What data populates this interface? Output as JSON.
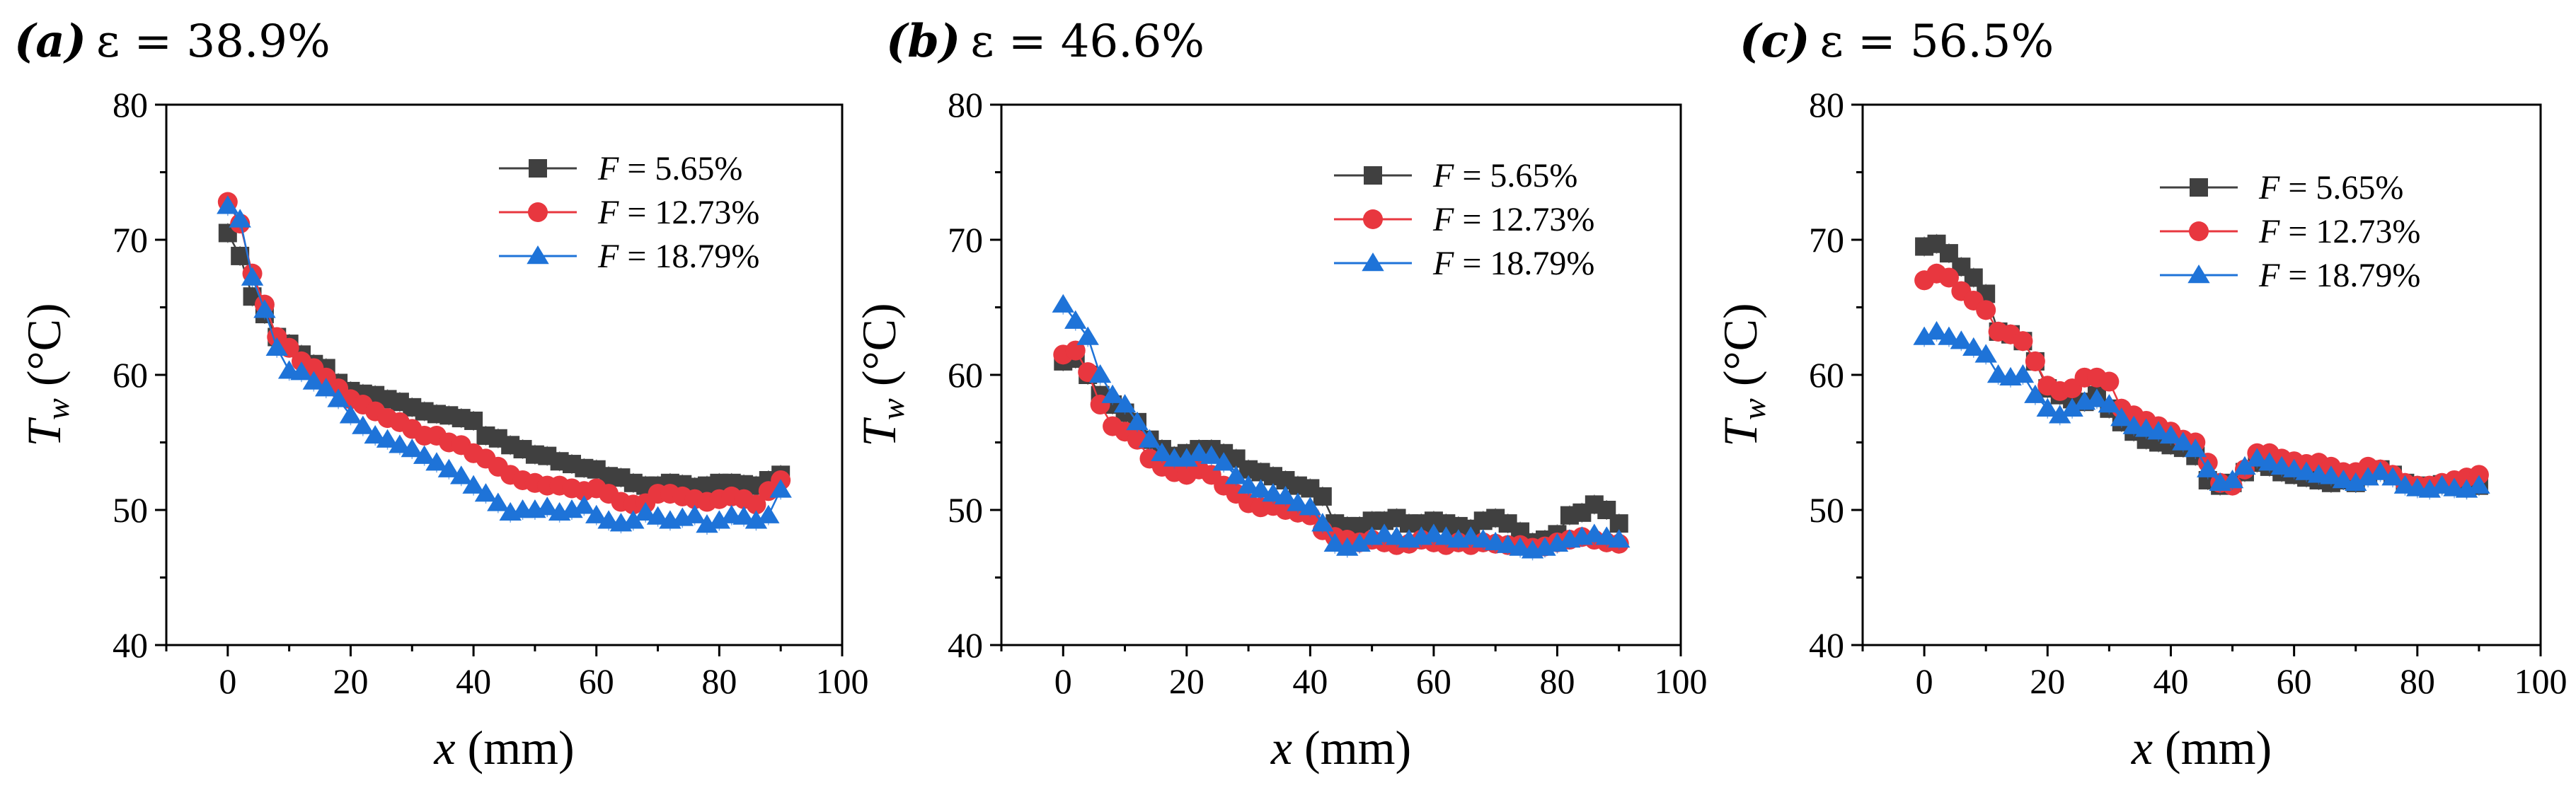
{
  "colors": {
    "s565": "#404040",
    "s1273": "#E8373F",
    "s1879": "#1E73D8"
  },
  "chart_data": [
    {
      "type": "scatter",
      "panel": "(a)",
      "title": "ε = 38.9%",
      "xlabel": "x (mm)",
      "ylabel": "Tw (°C)",
      "xlim": [
        -10,
        100
      ],
      "ylim": [
        40,
        80
      ],
      "xticks": [
        0,
        20,
        40,
        60,
        80,
        100
      ],
      "yticks": [
        40,
        50,
        60,
        70,
        80
      ],
      "legend_position": "top-right",
      "series": [
        {
          "name": "F = 5.65%",
          "marker": "square",
          "color": "#404040",
          "x": [
            0,
            2,
            4,
            6,
            8,
            10,
            12,
            14,
            16,
            18,
            20,
            22,
            24,
            26,
            28,
            30,
            32,
            34,
            36,
            38,
            40,
            42,
            44,
            46,
            48,
            50,
            52,
            54,
            56,
            58,
            60,
            62,
            64,
            66,
            68,
            70,
            72,
            74,
            76,
            78,
            80,
            82,
            84,
            86,
            88,
            90
          ],
          "y": [
            70.5,
            68.8,
            65.8,
            64.5,
            62.8,
            62.3,
            61.5,
            60.8,
            60.5,
            59.4,
            58.8,
            58.6,
            58.5,
            58.2,
            58.0,
            57.6,
            57.3,
            57.1,
            57.0,
            56.8,
            56.6,
            55.5,
            55.3,
            54.8,
            54.5,
            54.1,
            54.0,
            53.6,
            53.4,
            53.1,
            53.0,
            52.5,
            52.4,
            52.0,
            51.8,
            51.8,
            52.0,
            51.9,
            51.7,
            51.8,
            52.0,
            52.0,
            51.9,
            51.8,
            52.2,
            52.6
          ]
        },
        {
          "name": "F = 12.73%",
          "marker": "circle",
          "color": "#E8373F",
          "x": [
            0,
            2,
            4,
            6,
            8,
            10,
            12,
            14,
            16,
            18,
            20,
            22,
            24,
            26,
            28,
            30,
            32,
            34,
            36,
            38,
            40,
            42,
            44,
            46,
            48,
            50,
            52,
            54,
            56,
            58,
            60,
            62,
            64,
            66,
            68,
            70,
            72,
            74,
            76,
            78,
            80,
            82,
            84,
            86,
            88,
            90
          ],
          "y": [
            72.8,
            71.2,
            67.5,
            65.2,
            62.8,
            62.0,
            61.0,
            60.5,
            59.8,
            59.0,
            58.2,
            57.8,
            57.3,
            56.8,
            56.5,
            56.0,
            55.5,
            55.5,
            55.0,
            54.8,
            54.2,
            53.8,
            53.2,
            52.6,
            52.2,
            52.0,
            51.8,
            51.8,
            51.6,
            51.4,
            51.6,
            51.2,
            50.6,
            50.4,
            50.5,
            51.2,
            51.2,
            51.0,
            50.8,
            50.6,
            50.8,
            51.0,
            50.8,
            50.4,
            51.4,
            52.2
          ]
        },
        {
          "name": "F = 18.79%",
          "marker": "triangle",
          "color": "#1E73D8",
          "x": [
            0,
            2,
            4,
            6,
            8,
            10,
            12,
            14,
            16,
            18,
            20,
            22,
            24,
            26,
            28,
            30,
            32,
            34,
            36,
            38,
            40,
            42,
            44,
            46,
            48,
            50,
            52,
            54,
            56,
            58,
            60,
            62,
            64,
            66,
            68,
            70,
            72,
            74,
            76,
            78,
            80,
            82,
            84,
            86,
            88,
            90
          ],
          "y": [
            72.5,
            71.5,
            67.2,
            64.8,
            62.0,
            60.3,
            60.2,
            59.5,
            59.0,
            58.2,
            57.0,
            56.2,
            55.5,
            55.2,
            54.8,
            54.5,
            54.0,
            53.5,
            53.0,
            52.5,
            51.8,
            51.2,
            50.5,
            49.8,
            50.0,
            50.0,
            50.2,
            49.8,
            50.0,
            50.3,
            49.6,
            49.2,
            49.0,
            49.2,
            49.8,
            49.5,
            49.2,
            49.4,
            49.6,
            48.9,
            49.2,
            49.6,
            49.5,
            49.2,
            49.6,
            51.5
          ]
        }
      ]
    },
    {
      "type": "scatter",
      "panel": "(b)",
      "title": "ε = 46.6%",
      "xlabel": "x (mm)",
      "ylabel": "Tw (°C)",
      "xlim": [
        -10,
        100
      ],
      "ylim": [
        40,
        80
      ],
      "xticks": [
        0,
        20,
        40,
        60,
        80,
        100
      ],
      "yticks": [
        40,
        50,
        60,
        70,
        80
      ],
      "legend_position": "top-right",
      "series": [
        {
          "name": "F = 5.65%",
          "marker": "square",
          "color": "#404040",
          "x": [
            0,
            2,
            4,
            6,
            8,
            10,
            12,
            14,
            16,
            18,
            20,
            22,
            24,
            26,
            28,
            30,
            32,
            34,
            36,
            38,
            40,
            42,
            44,
            46,
            48,
            50,
            52,
            54,
            56,
            58,
            60,
            62,
            64,
            66,
            68,
            70,
            72,
            74,
            76,
            78,
            80,
            82,
            84,
            86,
            88,
            90
          ],
          "y": [
            61.0,
            61.2,
            60.0,
            58.5,
            57.8,
            57.2,
            56.5,
            55.2,
            54.5,
            54.0,
            54.2,
            54.5,
            54.5,
            54.2,
            53.8,
            53.0,
            52.8,
            52.5,
            52.2,
            51.8,
            51.6,
            51.0,
            49.0,
            48.8,
            48.8,
            49.2,
            49.2,
            49.4,
            49.0,
            49.0,
            49.2,
            49.0,
            48.8,
            48.6,
            49.2,
            49.4,
            49.0,
            48.4,
            47.6,
            47.8,
            48.2,
            49.6,
            49.8,
            50.4,
            50.0,
            49.0
          ]
        },
        {
          "name": "F = 12.73%",
          "marker": "circle",
          "color": "#E8373F",
          "x": [
            0,
            2,
            4,
            6,
            8,
            10,
            12,
            14,
            16,
            18,
            20,
            22,
            24,
            26,
            28,
            30,
            32,
            34,
            36,
            38,
            40,
            42,
            44,
            46,
            48,
            50,
            52,
            54,
            56,
            58,
            60,
            62,
            64,
            66,
            68,
            70,
            72,
            74,
            76,
            78,
            80,
            82,
            84,
            86,
            88,
            90
          ],
          "y": [
            61.5,
            61.8,
            60.2,
            57.8,
            56.2,
            55.8,
            55.2,
            53.8,
            53.2,
            52.8,
            52.6,
            53.0,
            52.6,
            51.8,
            51.2,
            50.5,
            50.2,
            50.3,
            50.0,
            49.8,
            49.6,
            48.5,
            48.0,
            47.8,
            47.6,
            47.8,
            47.6,
            47.4,
            47.5,
            47.8,
            47.6,
            47.4,
            47.6,
            47.4,
            47.6,
            47.5,
            47.4,
            47.4,
            47.2,
            47.3,
            47.6,
            47.8,
            48.0,
            47.8,
            47.6,
            47.5
          ]
        },
        {
          "name": "F = 18.79%",
          "marker": "triangle",
          "color": "#1E73D8",
          "x": [
            0,
            2,
            4,
            6,
            8,
            10,
            12,
            14,
            16,
            18,
            20,
            22,
            24,
            26,
            28,
            30,
            32,
            34,
            36,
            38,
            40,
            42,
            44,
            46,
            48,
            50,
            52,
            54,
            56,
            58,
            60,
            62,
            64,
            66,
            68,
            70,
            72,
            74,
            76,
            78,
            80,
            82,
            84,
            86,
            88,
            90
          ],
          "y": [
            65.2,
            64.0,
            62.8,
            60.0,
            58.5,
            57.8,
            56.5,
            55.2,
            54.2,
            53.8,
            53.8,
            54.2,
            54.0,
            53.5,
            52.5,
            51.8,
            51.5,
            51.2,
            51.0,
            50.5,
            50.2,
            49.0,
            47.5,
            47.2,
            47.5,
            48.0,
            48.2,
            48.0,
            47.8,
            48.0,
            48.2,
            48.0,
            47.8,
            48.0,
            47.8,
            47.6,
            47.4,
            47.2,
            47.0,
            47.2,
            47.5,
            47.8,
            48.0,
            48.2,
            48.0,
            47.8
          ]
        }
      ]
    },
    {
      "type": "scatter",
      "panel": "(c)",
      "title": "ε = 56.5%",
      "xlabel": "x (mm)",
      "ylabel": "Tw (°C)",
      "xlim": [
        -10,
        100
      ],
      "ylim": [
        40,
        80
      ],
      "xticks": [
        0,
        20,
        40,
        60,
        80,
        100
      ],
      "yticks": [
        40,
        50,
        60,
        70,
        80
      ],
      "legend_position": "top-right",
      "series": [
        {
          "name": "F = 5.65%",
          "marker": "square",
          "color": "#404040",
          "x": [
            0,
            2,
            4,
            6,
            8,
            10,
            12,
            14,
            16,
            18,
            20,
            22,
            24,
            26,
            28,
            30,
            32,
            34,
            36,
            38,
            40,
            42,
            44,
            46,
            48,
            50,
            52,
            54,
            56,
            58,
            60,
            62,
            64,
            66,
            68,
            70,
            72,
            74,
            76,
            78,
            80,
            82,
            84,
            86,
            88,
            90
          ],
          "y": [
            69.5,
            69.7,
            69.0,
            68.0,
            67.2,
            66.0,
            63.2,
            63.0,
            62.5,
            61.0,
            59.0,
            58.5,
            58.2,
            58.0,
            58.5,
            57.5,
            56.5,
            55.8,
            55.2,
            55.0,
            54.8,
            54.6,
            54.0,
            52.2,
            51.8,
            52.0,
            52.8,
            53.5,
            53.2,
            52.8,
            52.6,
            52.4,
            52.2,
            52.0,
            52.2,
            52.0,
            52.6,
            53.0,
            52.6,
            52.0,
            51.8,
            51.7,
            51.9,
            51.8,
            51.6,
            51.8
          ]
        },
        {
          "name": "F = 12.73%",
          "marker": "circle",
          "color": "#E8373F",
          "x": [
            0,
            2,
            4,
            6,
            8,
            10,
            12,
            14,
            16,
            18,
            20,
            22,
            24,
            26,
            28,
            30,
            32,
            34,
            36,
            38,
            40,
            42,
            44,
            46,
            48,
            50,
            52,
            54,
            56,
            58,
            60,
            62,
            64,
            66,
            68,
            70,
            72,
            74,
            76,
            78,
            80,
            82,
            84,
            86,
            88,
            90
          ],
          "y": [
            67.0,
            67.5,
            67.2,
            66.2,
            65.5,
            64.8,
            63.2,
            63.0,
            62.5,
            61.0,
            59.2,
            58.8,
            59.0,
            59.8,
            59.8,
            59.5,
            57.5,
            57.0,
            56.6,
            56.2,
            55.8,
            55.2,
            55.0,
            53.5,
            52.0,
            51.8,
            53.0,
            54.2,
            54.2,
            53.8,
            53.6,
            53.4,
            53.5,
            53.2,
            52.8,
            52.8,
            53.2,
            53.0,
            52.6,
            52.0,
            51.8,
            51.8,
            52.0,
            52.2,
            52.4,
            52.6
          ]
        },
        {
          "name": "F = 18.79%",
          "marker": "triangle",
          "color": "#1E73D8",
          "x": [
            0,
            2,
            4,
            6,
            8,
            10,
            12,
            14,
            16,
            18,
            20,
            22,
            24,
            26,
            28,
            30,
            32,
            34,
            36,
            38,
            40,
            42,
            44,
            46,
            48,
            50,
            52,
            54,
            56,
            58,
            60,
            62,
            64,
            66,
            68,
            70,
            72,
            74,
            76,
            78,
            80,
            82,
            84,
            86,
            88,
            90
          ],
          "y": [
            62.8,
            63.2,
            62.8,
            62.5,
            62.0,
            61.5,
            60.0,
            59.8,
            60.0,
            58.5,
            57.5,
            57.0,
            57.5,
            58.0,
            58.2,
            57.8,
            56.8,
            56.2,
            56.0,
            55.8,
            55.5,
            55.0,
            54.5,
            53.0,
            52.0,
            52.2,
            53.2,
            53.8,
            53.5,
            53.2,
            53.0,
            52.8,
            52.6,
            52.5,
            52.2,
            52.0,
            52.4,
            52.8,
            52.4,
            51.8,
            51.6,
            51.5,
            51.8,
            51.6,
            51.5,
            51.8
          ]
        }
      ]
    }
  ]
}
